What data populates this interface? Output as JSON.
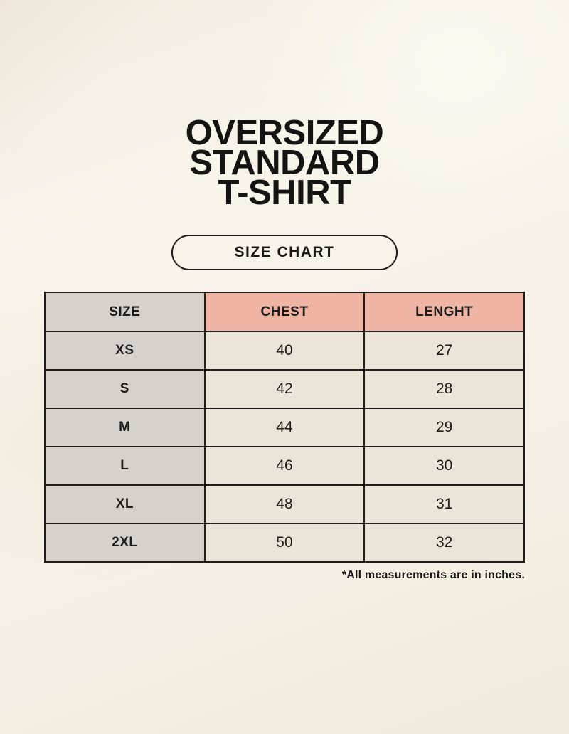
{
  "page": {
    "title_lines": [
      "OVERSIZED",
      "STANDARD",
      "T-SHIRT"
    ],
    "badge_label": "SIZE CHART",
    "footnote": "*All measurements are in inches."
  },
  "colors": {
    "background": "#f6f1e7",
    "size_column_bg": "#d7d1cd",
    "header_accent_bg": "#efb4a4",
    "data_cell_bg": "#ebe5d9",
    "border": "#1f1d1a",
    "text": "#1d1b19"
  },
  "chart_data": {
    "type": "table",
    "title": "OVERSIZED STANDARD T-SHIRT — SIZE CHART",
    "columns": [
      "SIZE",
      "CHEST",
      "LENGHT"
    ],
    "rows": [
      [
        "XS",
        "40",
        "27"
      ],
      [
        "S",
        "42",
        "28"
      ],
      [
        "M",
        "44",
        "29"
      ],
      [
        "L",
        "46",
        "30"
      ],
      [
        "XL",
        "48",
        "31"
      ],
      [
        "2XL",
        "50",
        "32"
      ]
    ],
    "units": "inches",
    "note": "*All measurements are in inches."
  }
}
